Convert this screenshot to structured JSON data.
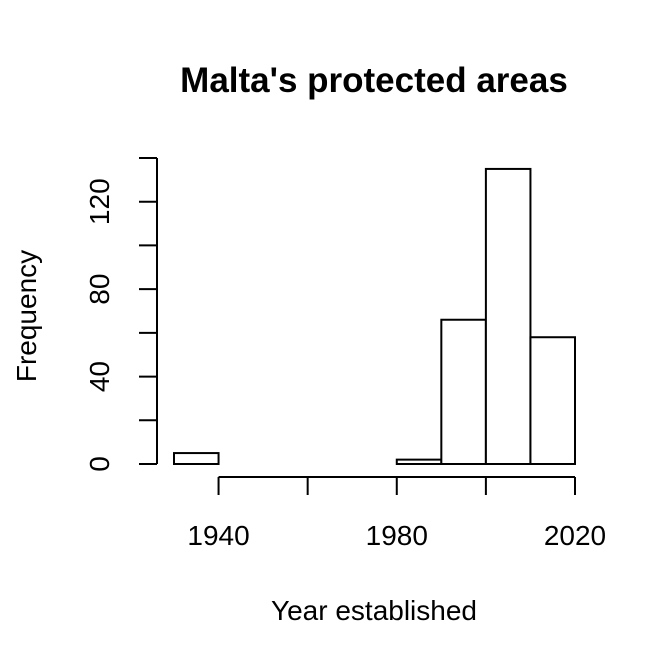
{
  "chart_data": {
    "type": "bar",
    "title": "Malta's protected areas",
    "xlabel": "Year established",
    "ylabel": "Frequency",
    "bin_edges": [
      1930,
      1940,
      1950,
      1960,
      1970,
      1980,
      1990,
      2000,
      2010,
      2020
    ],
    "values": [
      5,
      0,
      0,
      0,
      0,
      2,
      66,
      135,
      58
    ],
    "xlim": [
      1930,
      2020
    ],
    "ylim": [
      0,
      140
    ],
    "x_ticks": [
      1940,
      1960,
      1980,
      2000,
      2020
    ],
    "x_tick_labels": [
      "1940",
      "",
      "1980",
      "",
      "2020"
    ],
    "y_ticks": [
      0,
      20,
      40,
      60,
      80,
      100,
      120,
      140
    ],
    "y_tick_labels": [
      "0",
      "",
      "40",
      "",
      "80",
      "",
      "120",
      ""
    ],
    "grid": false,
    "legend": "none"
  }
}
